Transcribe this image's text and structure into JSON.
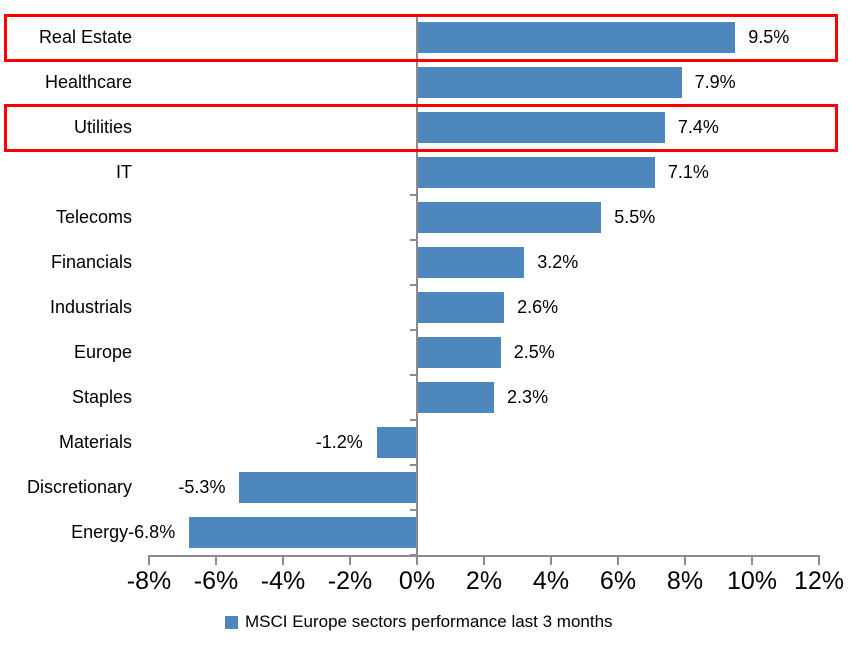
{
  "chart_data": {
    "type": "bar",
    "orientation": "horizontal",
    "title": "",
    "categories": [
      "Real Estate",
      "Healthcare",
      "Utilities",
      "IT",
      "Telecoms",
      "Financials",
      "Industrials",
      "Europe",
      "Staples",
      "Materials",
      "Discretionary",
      "Energy"
    ],
    "values": [
      9.5,
      7.9,
      7.4,
      7.1,
      5.5,
      3.2,
      2.6,
      2.5,
      2.3,
      -1.2,
      -5.3,
      -6.8
    ],
    "data_labels": [
      "9.5%",
      "7.9%",
      "7.4%",
      "7.1%",
      "5.5%",
      "3.2%",
      "2.6%",
      "2.5%",
      "2.3%",
      "-1.2%",
      "-5.3%",
      "-6.8%"
    ],
    "x_tick_labels": [
      "-8%",
      "-6%",
      "-4%",
      "-2%",
      "0%",
      "2%",
      "4%",
      "6%",
      "8%",
      "10%",
      "12%"
    ],
    "x_tick_values": [
      -8,
      -6,
      -4,
      -2,
      0,
      2,
      4,
      6,
      8,
      10,
      12
    ],
    "xlim": [
      -8,
      12
    ],
    "grid": false,
    "legend": [
      "MSCI Europe sectors performance last 3 months"
    ],
    "legend_position": "bottom",
    "bar_color": "#4e86be",
    "axis_color": "#8c8c8c",
    "text_color": "#000000",
    "highlight": {
      "color": "#fc0000",
      "rows": [
        "Real Estate",
        "Utilities"
      ]
    }
  }
}
